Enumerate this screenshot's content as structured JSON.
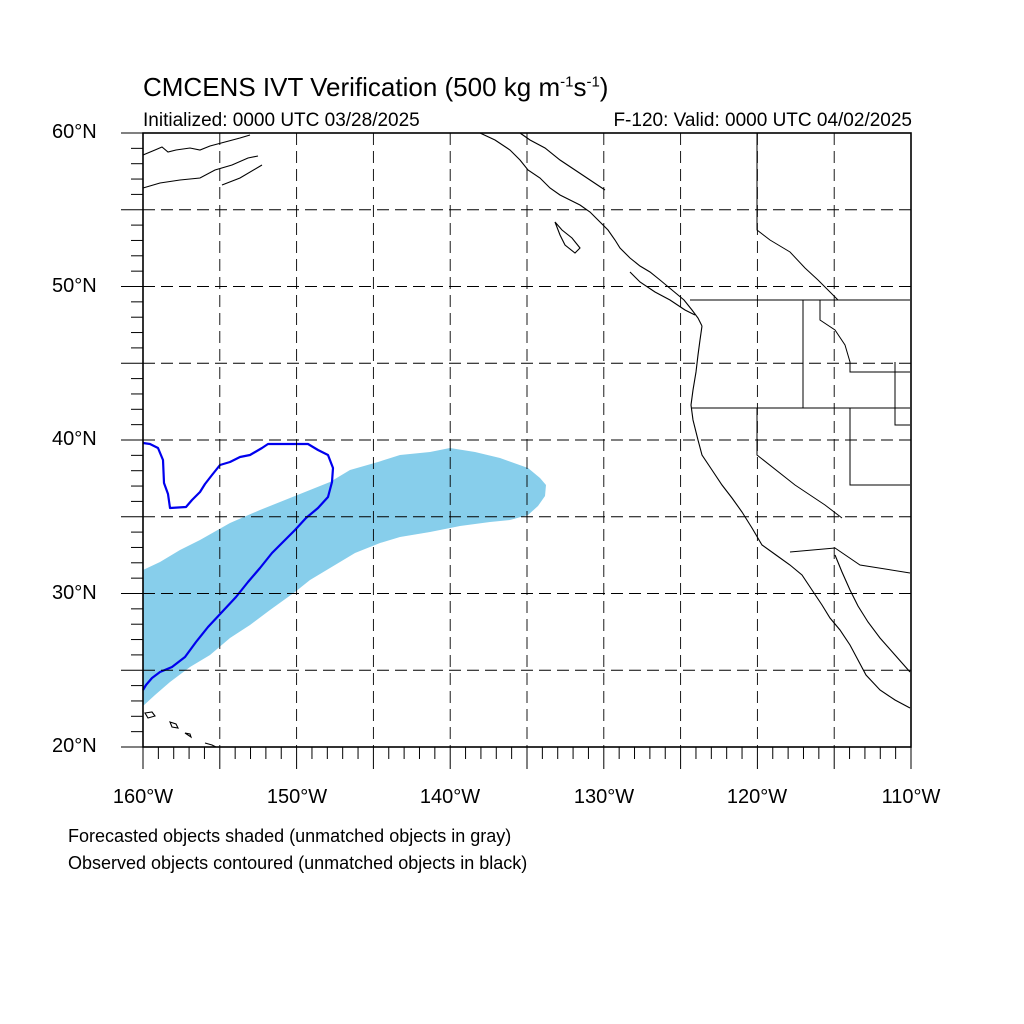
{
  "title": {
    "main": "CMCENS IVT Verification (500 kg m",
    "exp1": "-1",
    "mid": "s",
    "exp2": "-1",
    "end": ")"
  },
  "subtitle_left": "Initialized: 0000 UTC 03/28/2025",
  "subtitle_right": "F-120: Valid: 0000 UTC 04/02/2025",
  "axes": {
    "lat_labels": [
      "60°N",
      "50°N",
      "40°N",
      "30°N",
      "20°N"
    ],
    "lon_labels": [
      "160°W",
      "150°W",
      "140°W",
      "130°W",
      "120°W",
      "110°W"
    ]
  },
  "notes": {
    "line1": "Forecasted objects shaded (unmatched objects in gray)",
    "line2": "Observed objects contoured (unmatched objects in black)"
  },
  "colors": {
    "forecast_fill": "#87ceeb",
    "observed_contour": "#0000ee",
    "coastline": "#000000",
    "grid": "#000000"
  },
  "map_extent": {
    "lon_min": -160,
    "lon_max": -110,
    "lat_min": 20,
    "lat_max": 60
  }
}
